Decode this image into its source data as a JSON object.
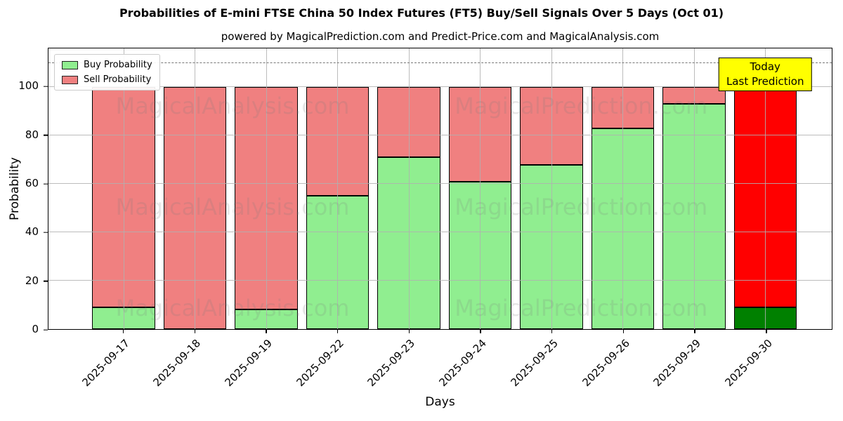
{
  "chart_data": {
    "type": "bar",
    "stacked": true,
    "title": "Probabilities of E-mini FTSE China 50 Index Futures (FT5) Buy/Sell Signals Over 5 Days (Oct 01)",
    "subtitle": "powered by MagicalPrediction.com and Predict-Price.com and MagicalAnalysis.com",
    "xlabel": "Days",
    "ylabel": "Probability",
    "ylim": [
      0,
      116
    ],
    "yticks": [
      0,
      20,
      40,
      60,
      80,
      100
    ],
    "dashed_line_y": 110,
    "grid": true,
    "legend_position": "upper-left",
    "categories": [
      "2025-09-17",
      "2025-09-18",
      "2025-09-19",
      "2025-09-22",
      "2025-09-23",
      "2025-09-24",
      "2025-09-25",
      "2025-09-26",
      "2025-09-29",
      "2025-09-30"
    ],
    "series": [
      {
        "name": "Buy Probability",
        "color": "#90EE90",
        "values": [
          9,
          0,
          8,
          55,
          71,
          61,
          68,
          83,
          93,
          9
        ]
      },
      {
        "name": "Sell Probability",
        "color": "#F08080",
        "values": [
          91,
          100,
          92,
          45,
          29,
          39,
          32,
          17,
          7,
          91
        ]
      }
    ],
    "today_override": {
      "index": 9,
      "buy_color": "#008000",
      "sell_color": "#FF0000"
    },
    "annotation": {
      "line1": "Today",
      "line2": "Last Prediction",
      "bg_color": "#FFFF00"
    },
    "watermark_texts": [
      "MagicalAnalysis.com",
      "MagicalPrediction.com"
    ],
    "colors": {
      "bar_edge": "#000000",
      "grid": "#b0b0b0",
      "dashed_line": "#777777",
      "annotation_bg": "#FFFF00",
      "watermark": "#787878"
    }
  }
}
